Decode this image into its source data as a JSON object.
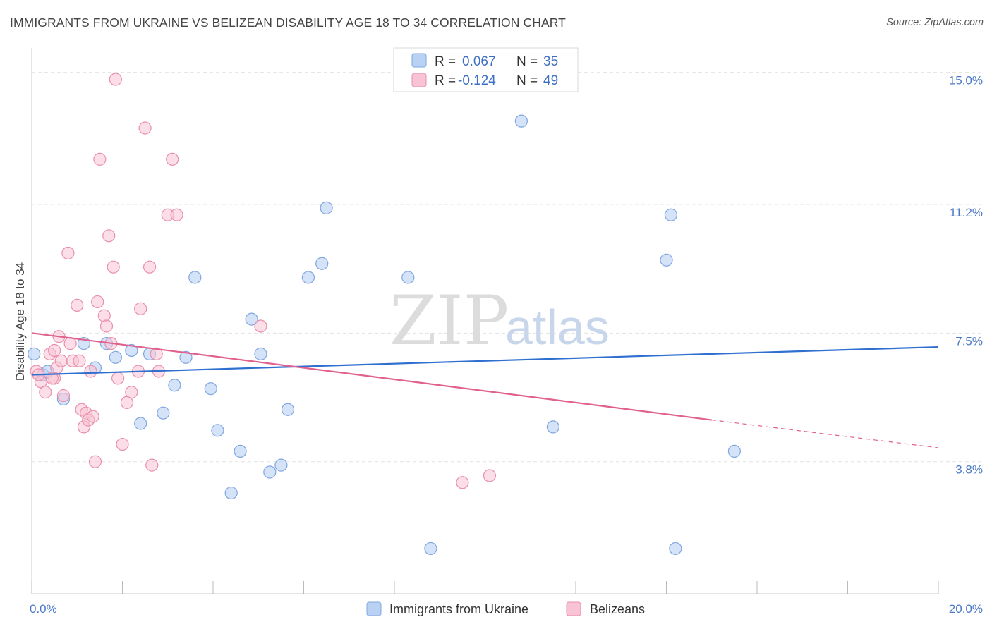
{
  "title": "IMMIGRANTS FROM UKRAINE VS BELIZEAN DISABILITY AGE 18 TO 34 CORRELATION CHART",
  "source": "Source: ZipAtlas.com",
  "watermark": {
    "zip": "ZIP",
    "atlas": "atlas"
  },
  "colors": {
    "ukraine_fill": "#b9d1f3",
    "ukraine_stroke": "#7fa6e0",
    "ukraine_line": "#2e6fd0",
    "belize_fill": "#f8c3d4",
    "belize_stroke": "#e98fab",
    "belize_line": "#e0608e",
    "tick_text": "#4a79c8",
    "grid": "#e2e2e2"
  },
  "legend": {
    "r_label": "R =",
    "n_label": "N =",
    "rows": [
      {
        "r": "0.067",
        "n": "35"
      },
      {
        "r": "-0.124",
        "n": "49"
      }
    ]
  },
  "chart_data": {
    "type": "scatter",
    "title": "IMMIGRANTS FROM UKRAINE VS BELIZEAN DISABILITY AGE 18 TO 34 CORRELATION CHART",
    "xlabel": "",
    "ylabel": "Disability Age 18 to 34",
    "xlim": [
      0,
      20
    ],
    "ylim": [
      0,
      15.5
    ],
    "x_tick_labels": [
      "0.0%",
      "20.0%"
    ],
    "y_ticks": [
      3.8,
      7.5,
      11.2,
      15.0
    ],
    "y_tick_labels": [
      "3.8%",
      "7.5%",
      "11.2%",
      "15.0%"
    ],
    "grid": true,
    "legend_position": "top-center",
    "series": [
      {
        "name": "Immigrants from Ukraine",
        "points": [
          [
            0.05,
            6.9
          ],
          [
            0.25,
            6.3
          ],
          [
            0.35,
            6.4
          ],
          [
            0.7,
            5.6
          ],
          [
            1.15,
            7.2
          ],
          [
            1.4,
            6.5
          ],
          [
            1.65,
            7.2
          ],
          [
            1.85,
            6.8
          ],
          [
            2.2,
            7.0
          ],
          [
            2.4,
            4.9
          ],
          [
            2.6,
            6.9
          ],
          [
            2.9,
            5.2
          ],
          [
            3.15,
            6.0
          ],
          [
            3.4,
            6.8
          ],
          [
            3.6,
            9.1
          ],
          [
            3.95,
            5.9
          ],
          [
            4.1,
            4.7
          ],
          [
            4.4,
            2.9
          ],
          [
            4.6,
            4.1
          ],
          [
            4.85,
            7.9
          ],
          [
            5.05,
            6.9
          ],
          [
            5.25,
            3.5
          ],
          [
            5.5,
            3.7
          ],
          [
            5.65,
            5.3
          ],
          [
            6.1,
            9.1
          ],
          [
            6.4,
            9.5
          ],
          [
            6.5,
            11.1
          ],
          [
            8.3,
            9.1
          ],
          [
            8.8,
            1.3
          ],
          [
            10.8,
            13.6
          ],
          [
            11.5,
            4.8
          ],
          [
            14.0,
            9.6
          ],
          [
            14.1,
            10.9
          ],
          [
            14.2,
            1.3
          ],
          [
            15.5,
            4.1
          ]
        ],
        "trend": [
          [
            0,
            6.3
          ],
          [
            20,
            7.1
          ]
        ]
      },
      {
        "name": "Belizeans",
        "points": [
          [
            0.1,
            6.4
          ],
          [
            0.2,
            6.1
          ],
          [
            0.3,
            5.8
          ],
          [
            0.4,
            6.9
          ],
          [
            0.5,
            7.0
          ],
          [
            0.5,
            6.2
          ],
          [
            0.55,
            6.5
          ],
          [
            0.6,
            7.4
          ],
          [
            0.65,
            6.7
          ],
          [
            0.7,
            5.7
          ],
          [
            0.8,
            9.8
          ],
          [
            0.85,
            7.2
          ],
          [
            0.9,
            6.7
          ],
          [
            1.0,
            8.3
          ],
          [
            1.05,
            6.7
          ],
          [
            1.1,
            5.3
          ],
          [
            1.15,
            4.8
          ],
          [
            1.2,
            5.2
          ],
          [
            1.25,
            5.0
          ],
          [
            1.3,
            6.4
          ],
          [
            1.35,
            5.1
          ],
          [
            1.4,
            3.8
          ],
          [
            1.45,
            8.4
          ],
          [
            1.5,
            12.5
          ],
          [
            1.6,
            8.0
          ],
          [
            1.65,
            7.7
          ],
          [
            1.7,
            10.3
          ],
          [
            1.75,
            7.2
          ],
          [
            1.8,
            9.4
          ],
          [
            1.85,
            14.8
          ],
          [
            1.9,
            6.2
          ],
          [
            2.0,
            4.3
          ],
          [
            2.1,
            5.5
          ],
          [
            2.2,
            5.8
          ],
          [
            2.35,
            6.4
          ],
          [
            2.4,
            8.2
          ],
          [
            2.5,
            13.4
          ],
          [
            2.6,
            9.4
          ],
          [
            2.65,
            3.7
          ],
          [
            2.75,
            6.9
          ],
          [
            2.8,
            6.4
          ],
          [
            3.0,
            10.9
          ],
          [
            3.1,
            12.5
          ],
          [
            3.2,
            10.9
          ],
          [
            5.05,
            7.7
          ],
          [
            9.5,
            3.2
          ],
          [
            10.1,
            3.4
          ],
          [
            0.15,
            6.3
          ],
          [
            0.45,
            6.2
          ]
        ],
        "trend_solid": [
          [
            0,
            7.5
          ],
          [
            15,
            5.0
          ]
        ],
        "trend_dashed": [
          [
            15,
            5.0
          ],
          [
            20,
            4.2
          ]
        ]
      }
    ]
  }
}
